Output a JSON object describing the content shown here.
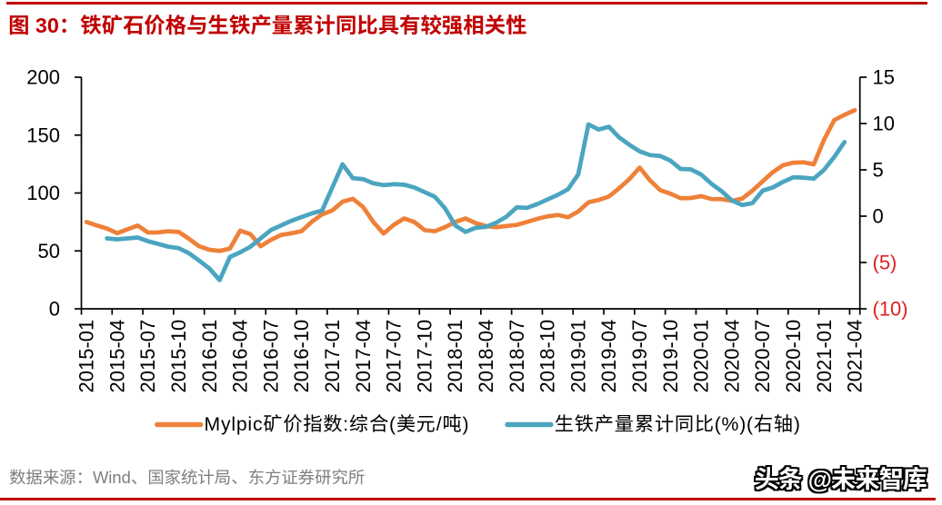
{
  "page": {
    "watermark": "头条 @未来智库",
    "source_note": "数据来源：Wind、国家统计局、东方证券研究所",
    "colors": {
      "accent_red": "#C00000",
      "negative_tick_red": "#E02020",
      "source_gray": "#7F7F7F",
      "axis_black": "#000000"
    }
  },
  "chart_data": {
    "type": "line",
    "title": "图 30：铁矿石价格与生铁产量累计同比具有较强相关性",
    "x": [
      "2015-01",
      "2015-02",
      "2015-03",
      "2015-04",
      "2015-05",
      "2015-06",
      "2015-07",
      "2015-08",
      "2015-09",
      "2015-10",
      "2015-11",
      "2015-12",
      "2016-01",
      "2016-02",
      "2016-03",
      "2016-04",
      "2016-05",
      "2016-06",
      "2016-07",
      "2016-08",
      "2016-09",
      "2016-10",
      "2016-11",
      "2016-12",
      "2017-01",
      "2017-02",
      "2017-03",
      "2017-04",
      "2017-05",
      "2017-06",
      "2017-07",
      "2017-08",
      "2017-09",
      "2017-10",
      "2017-11",
      "2017-12",
      "2018-01",
      "2018-02",
      "2018-03",
      "2018-04",
      "2018-05",
      "2018-06",
      "2018-07",
      "2018-08",
      "2018-09",
      "2018-10",
      "2018-11",
      "2018-12",
      "2019-01",
      "2019-02",
      "2019-03",
      "2019-04",
      "2019-05",
      "2019-06",
      "2019-07",
      "2019-08",
      "2019-09",
      "2019-10",
      "2019-11",
      "2019-12",
      "2020-01",
      "2020-02",
      "2020-03",
      "2020-04",
      "2020-05",
      "2020-06",
      "2020-07",
      "2020-08",
      "2020-09",
      "2020-10",
      "2020-11",
      "2020-12",
      "2021-01",
      "2021-02",
      "2021-03",
      "2021-04"
    ],
    "x_tick_labels": [
      "2015-01",
      "2015-04",
      "2015-07",
      "2015-10",
      "2016-01",
      "2016-04",
      "2016-07",
      "2016-10",
      "2017-01",
      "2017-04",
      "2017-07",
      "2017-10",
      "2018-01",
      "2018-04",
      "2018-07",
      "2018-10",
      "2019-01",
      "2019-04",
      "2019-07",
      "2019-10",
      "2020-01",
      "2020-04",
      "2020-07",
      "2020-10",
      "2021-01",
      "2021-04"
    ],
    "series": [
      {
        "name": "Mylpic矿价指数:综合(美元/吨)",
        "axis": "left",
        "color": "#EE8139",
        "values": [
          75.0,
          72.0,
          69.3,
          65.3,
          68.7,
          71.9,
          65.9,
          66.0,
          67.0,
          66.4,
          60.5,
          54.0,
          51.0,
          50.0,
          52.0,
          67.5,
          64.5,
          54.0,
          59.5,
          63.8,
          65.2,
          67.1,
          75.2,
          81.5,
          85.0,
          92.5,
          95.0,
          88.0,
          75.0,
          65.0,
          72.5,
          78.0,
          75.0,
          68.0,
          67.0,
          70.5,
          75.0,
          78.0,
          74.0,
          71.5,
          70.5,
          71.5,
          72.5,
          75.0,
          77.7,
          79.8,
          81.0,
          79.1,
          84.0,
          92.0,
          94.0,
          97.0,
          104.1,
          112.0,
          122.0,
          111.0,
          102.5,
          99.4,
          95.5,
          95.7,
          97.3,
          94.8,
          94.7,
          93.3,
          95.1,
          102.0,
          110.0,
          118.0,
          124.0,
          126.2,
          126.5,
          124.8,
          146.0,
          163.0,
          167.5,
          171.5
        ]
      },
      {
        "name": "生铁产量累计同比(%)(右轴)",
        "axis": "right",
        "color": "#4BA5C0",
        "values": [
          null,
          null,
          -2.4,
          -2.5,
          -2.4,
          -2.3,
          -2.7,
          -3.0,
          -3.3,
          -3.45,
          -4.0,
          -4.8,
          -5.65,
          -6.9,
          -4.4,
          -3.9,
          -3.3,
          -2.4,
          -1.5,
          -1.0,
          -0.5,
          -0.1,
          0.3,
          0.6,
          3.1,
          5.6,
          4.1,
          4.0,
          3.55,
          3.35,
          3.45,
          3.4,
          3.1,
          2.6,
          2.1,
          0.85,
          -1.0,
          -1.7,
          -1.25,
          -1.15,
          -0.7,
          -0.05,
          0.95,
          0.9,
          1.3,
          1.8,
          2.3,
          2.9,
          4.5,
          9.9,
          9.35,
          9.65,
          8.5,
          7.7,
          7.0,
          6.6,
          6.5,
          6.0,
          5.1,
          5.05,
          4.5,
          3.5,
          2.7,
          1.7,
          1.2,
          1.4,
          2.75,
          3.1,
          3.7,
          4.2,
          4.15,
          4.05,
          5.0,
          6.4,
          8.0,
          null
        ]
      }
    ],
    "left_axis": {
      "min": 0,
      "max": 200,
      "step": 50,
      "tick_labels": [
        "0",
        "50",
        "100",
        "150",
        "200"
      ]
    },
    "right_axis": {
      "min": -10,
      "max": 15,
      "step": 5,
      "tick_labels": [
        "(10)",
        "(5)",
        "0",
        "5",
        "10",
        "15"
      ],
      "negatives_in_red": true
    },
    "grid": false,
    "legend_position": "bottom"
  }
}
